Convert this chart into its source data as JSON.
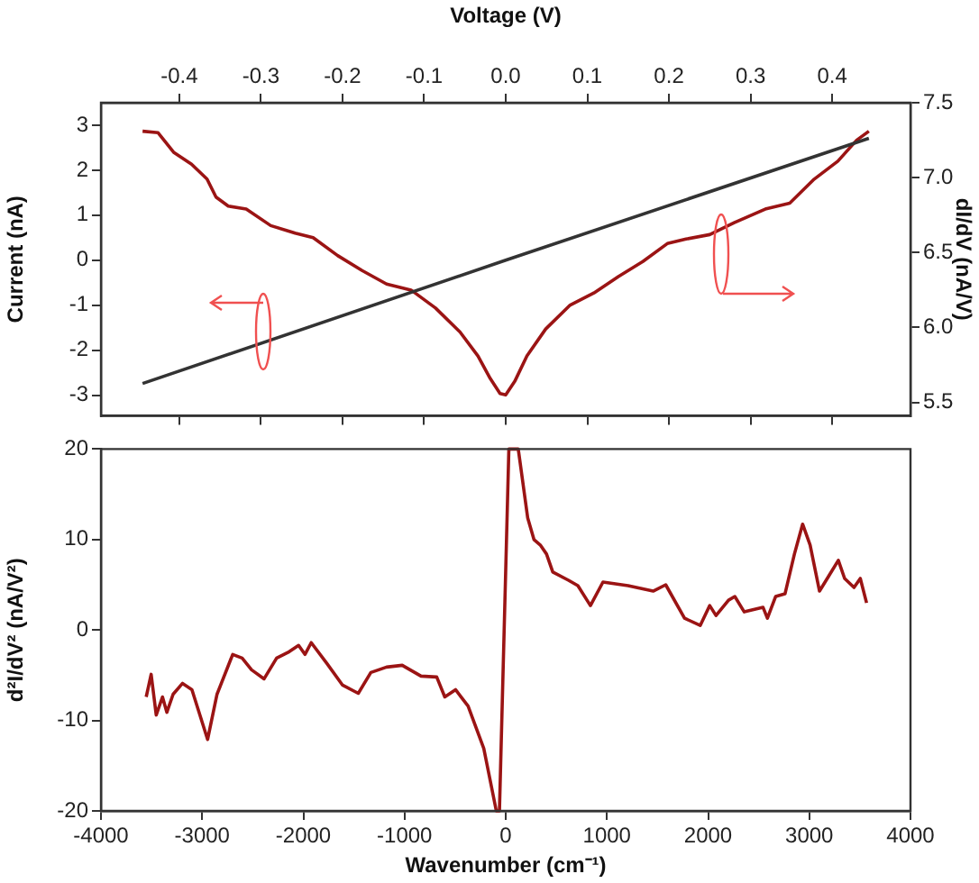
{
  "chart_data": [
    {
      "type": "line",
      "xlabel": "Voltage (V)",
      "ylabel": "Current (nA)",
      "y2label": "dI/dV (nA/V)",
      "xlim": [
        -0.496,
        0.496
      ],
      "xticks": [
        -0.4,
        -0.3,
        -0.2,
        -0.1,
        {
          "value": 0,
          "label": "0.0"
        },
        0.1,
        0.2,
        0.3,
        0.4
      ],
      "ylim": [
        -3.46,
        3.5
      ],
      "yticks": [
        -3,
        -2,
        -1,
        0,
        1,
        2,
        3
      ],
      "y2lim": [
        5.41,
        7.5
      ],
      "y2ticks": [
        5.5,
        {
          "value": 6,
          "label": "6.0"
        },
        6.5,
        {
          "value": 7,
          "label": "7.0"
        },
        7.5
      ],
      "grid": false,
      "legend": false,
      "series": [
        {
          "color": "#333333",
          "axis": "y",
          "x": [
            -0.445,
            0,
            0.445
          ],
          "values": [
            -2.74,
            0,
            2.71
          ]
        },
        {
          "color": "#9b1414",
          "axis": "y2",
          "x": [
            -0.445,
            -0.426,
            -0.407,
            -0.385,
            -0.366,
            -0.355,
            -0.34,
            -0.318,
            -0.288,
            -0.258,
            -0.236,
            -0.206,
            -0.176,
            -0.146,
            -0.116,
            -0.086,
            -0.056,
            -0.034,
            -0.019,
            -0.007,
            0,
            0.011,
            0.026,
            0.049,
            0.079,
            0.108,
            0.138,
            0.168,
            0.198,
            0.221,
            0.25,
            0.28,
            0.318,
            0.348,
            0.378,
            0.407,
            0.43,
            0.445
          ],
          "values": [
            7.31,
            7.3,
            7.17,
            7.09,
            6.99,
            6.87,
            6.81,
            6.79,
            6.68,
            6.63,
            6.6,
            6.48,
            6.38,
            6.29,
            6.25,
            6.13,
            5.97,
            5.81,
            5.66,
            5.56,
            5.55,
            5.64,
            5.81,
            5.99,
            6.15,
            6.23,
            6.34,
            6.44,
            6.56,
            6.59,
            6.62,
            6.7,
            6.79,
            6.83,
            6.99,
            7.11,
            7.25,
            7.31
          ]
        }
      ]
    },
    {
      "type": "line",
      "xlabel": "Wavenumber (cm⁻¹)",
      "ylabel": "d²I/dV² (nA/V²)",
      "xlim": [
        -4000,
        4000
      ],
      "xticks": [
        -4000,
        -3000,
        -2000,
        -1000,
        0,
        1000,
        2000,
        3000,
        4000
      ],
      "ylim": [
        -20,
        20
      ],
      "yticks": [
        -20,
        -10,
        0,
        10,
        20
      ],
      "grid": false,
      "legend": false,
      "series": [
        {
          "color": "#9b1414",
          "x": [
            -3553,
            -3504,
            -3454,
            -3392,
            -3349,
            -3287,
            -3194,
            -3101,
            -2946,
            -2853,
            -2698,
            -2605,
            -2512,
            -2388,
            -2264,
            -2140,
            -2047,
            -1984,
            -1922,
            -1767,
            -1612,
            -1457,
            -1333,
            -1178,
            -1023,
            -837,
            -682,
            -602,
            -496,
            -372,
            -217,
            -93,
            -62,
            31,
            124,
            217,
            279,
            341,
            403,
            465,
            620,
            713,
            837,
            961,
            1209,
            1457,
            1581,
            1767,
            1922,
            2016,
            2078,
            2202,
            2264,
            2357,
            2543,
            2586,
            2667,
            2760,
            2853,
            2934,
            3008,
            3101,
            3194,
            3287,
            3349,
            3442,
            3504,
            3566
          ],
          "values": [
            -7.4,
            -4.9,
            -9.4,
            -7.4,
            -9.1,
            -7.1,
            -5.9,
            -6.6,
            -12.1,
            -7.1,
            -2.7,
            -3.1,
            -4.4,
            -5.4,
            -3.1,
            -2.4,
            -1.7,
            -2.7,
            -1.4,
            -3.7,
            -6.1,
            -7,
            -4.7,
            -4.1,
            -3.9,
            -5.1,
            -5.2,
            -7.4,
            -6.6,
            -8.4,
            -13.1,
            -20,
            -20,
            20,
            20,
            12.4,
            10,
            9.4,
            8.4,
            6.4,
            5.5,
            4.9,
            2.7,
            5.3,
            4.9,
            4.3,
            5,
            1.3,
            0.5,
            2.7,
            1.6,
            3.3,
            3.7,
            2,
            2.5,
            1.3,
            3.7,
            4,
            8.4,
            11.7,
            9.4,
            4.3,
            6,
            7.7,
            5.7,
            4.7,
            5.7,
            3
          ]
        }
      ]
    }
  ]
}
